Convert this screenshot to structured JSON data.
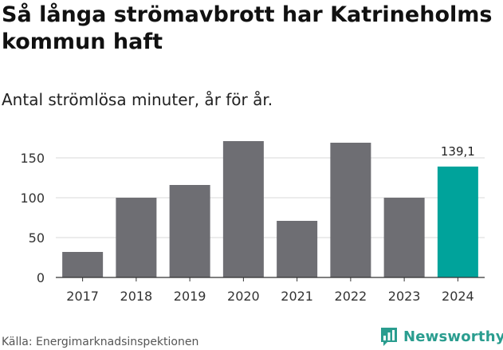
{
  "header": {
    "title": "Så långa strömavbrott har Katrineholms kommun haft",
    "subtitle": "Antal strömlösa minuter, år för år."
  },
  "chart_data": {
    "type": "bar",
    "categories": [
      "2017",
      "2018",
      "2019",
      "2020",
      "2021",
      "2022",
      "2023",
      "2024"
    ],
    "values": [
      32,
      100,
      116,
      171,
      71,
      169,
      100,
      139.1
    ],
    "highlight_index": 7,
    "highlight_label": "139,1",
    "yticks": [
      0,
      50,
      100,
      150
    ],
    "ylim": [
      0,
      180
    ],
    "grid": true,
    "bar_color": "#6e6e73",
    "highlight_color": "#00a39b"
  },
  "footer": {
    "source": "Källa: Energimarknadsinspektionen",
    "brand": "Newsworthy",
    "brand_color": "#2a9d8f",
    "brand_icon": "bar-chart-icon"
  }
}
